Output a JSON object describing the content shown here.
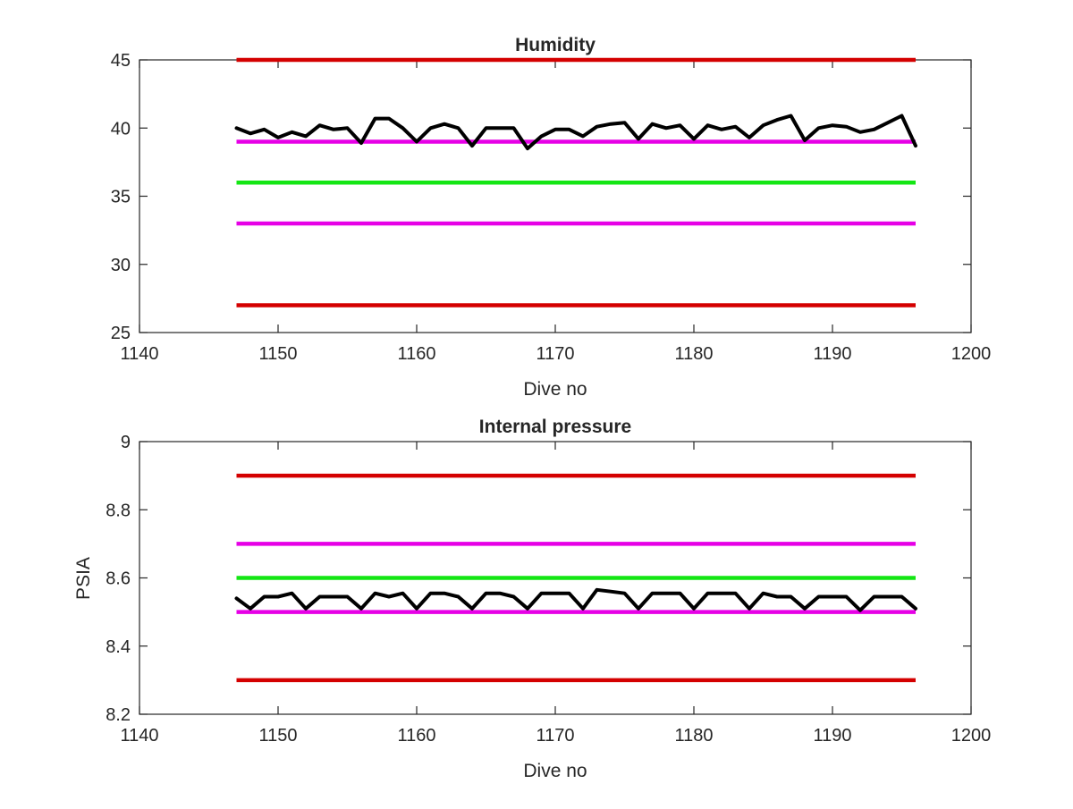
{
  "chart_data": [
    {
      "type": "line",
      "title": "Humidity",
      "xlabel": "Dive no",
      "ylabel": "",
      "xlim": [
        1140,
        1200
      ],
      "ylim": [
        25,
        45
      ],
      "xticks": [
        1140,
        1150,
        1160,
        1170,
        1180,
        1190,
        1200
      ],
      "yticks": [
        25,
        30,
        35,
        40,
        45
      ],
      "grid": false,
      "series": [
        {
          "color": "#000000",
          "x": [
            1147,
            1148,
            1149,
            1150,
            1151,
            1152,
            1153,
            1154,
            1155,
            1156,
            1157,
            1158,
            1159,
            1160,
            1161,
            1162,
            1163,
            1164,
            1165,
            1166,
            1167,
            1168,
            1169,
            1170,
            1171,
            1172,
            1173,
            1174,
            1175,
            1176,
            1177,
            1178,
            1179,
            1180,
            1181,
            1182,
            1183,
            1184,
            1185,
            1186,
            1187,
            1188,
            1189,
            1190,
            1191,
            1192,
            1193,
            1194,
            1195,
            1196
          ],
          "y": [
            40.0,
            39.6,
            39.9,
            39.3,
            39.7,
            39.4,
            40.2,
            39.9,
            40.0,
            38.9,
            40.7,
            40.7,
            40.0,
            39.0,
            40.0,
            40.3,
            40.0,
            38.7,
            40.0,
            40.0,
            40.0,
            38.5,
            39.4,
            39.9,
            39.9,
            39.4,
            40.1,
            40.3,
            40.4,
            39.2,
            40.3,
            40.0,
            40.2,
            39.2,
            40.2,
            39.9,
            40.1,
            39.3,
            40.2,
            40.6,
            40.9,
            39.1,
            40.0,
            40.2,
            40.1,
            39.7,
            39.9,
            40.4,
            40.9,
            38.7
          ]
        }
      ],
      "hlines": [
        {
          "y": 45,
          "x_range": [
            1147,
            1196
          ],
          "color": "#d40000"
        },
        {
          "y": 39,
          "x_range": [
            1147,
            1196
          ],
          "color": "#e600e6"
        },
        {
          "y": 36,
          "x_range": [
            1147,
            1196
          ],
          "color": "#14e614"
        },
        {
          "y": 33,
          "x_range": [
            1147,
            1196
          ],
          "color": "#e600e6"
        },
        {
          "y": 27,
          "x_range": [
            1147,
            1196
          ],
          "color": "#d40000"
        }
      ]
    },
    {
      "type": "line",
      "title": "Internal pressure",
      "xlabel": "Dive no",
      "ylabel": "PSIA",
      "xlim": [
        1140,
        1200
      ],
      "ylim": [
        8.2,
        9
      ],
      "xticks": [
        1140,
        1150,
        1160,
        1170,
        1180,
        1190,
        1200
      ],
      "yticks": [
        8.2,
        8.4,
        8.6,
        8.8,
        9
      ],
      "grid": false,
      "series": [
        {
          "color": "#000000",
          "x": [
            1147,
            1148,
            1149,
            1150,
            1151,
            1152,
            1153,
            1154,
            1155,
            1156,
            1157,
            1158,
            1159,
            1160,
            1161,
            1162,
            1163,
            1164,
            1165,
            1166,
            1167,
            1168,
            1169,
            1170,
            1171,
            1172,
            1173,
            1174,
            1175,
            1176,
            1177,
            1178,
            1179,
            1180,
            1181,
            1182,
            1183,
            1184,
            1185,
            1186,
            1187,
            1188,
            1189,
            1190,
            1191,
            1192,
            1193,
            1194,
            1195,
            1196
          ],
          "y": [
            8.54,
            8.51,
            8.545,
            8.545,
            8.555,
            8.51,
            8.545,
            8.545,
            8.545,
            8.51,
            8.555,
            8.545,
            8.555,
            8.51,
            8.555,
            8.555,
            8.545,
            8.51,
            8.555,
            8.555,
            8.545,
            8.51,
            8.555,
            8.555,
            8.555,
            8.51,
            8.565,
            8.56,
            8.555,
            8.51,
            8.555,
            8.555,
            8.555,
            8.51,
            8.555,
            8.555,
            8.555,
            8.51,
            8.555,
            8.545,
            8.545,
            8.51,
            8.545,
            8.545,
            8.545,
            8.505,
            8.545,
            8.545,
            8.545,
            8.51
          ]
        }
      ],
      "hlines": [
        {
          "y": 8.9,
          "x_range": [
            1147,
            1196
          ],
          "color": "#d40000"
        },
        {
          "y": 8.7,
          "x_range": [
            1147,
            1196
          ],
          "color": "#e600e6"
        },
        {
          "y": 8.6,
          "x_range": [
            1147,
            1196
          ],
          "color": "#14e614"
        },
        {
          "y": 8.5,
          "x_range": [
            1147,
            1196
          ],
          "color": "#e600e6"
        },
        {
          "y": 8.3,
          "x_range": [
            1147,
            1196
          ],
          "color": "#d40000"
        }
      ]
    }
  ]
}
